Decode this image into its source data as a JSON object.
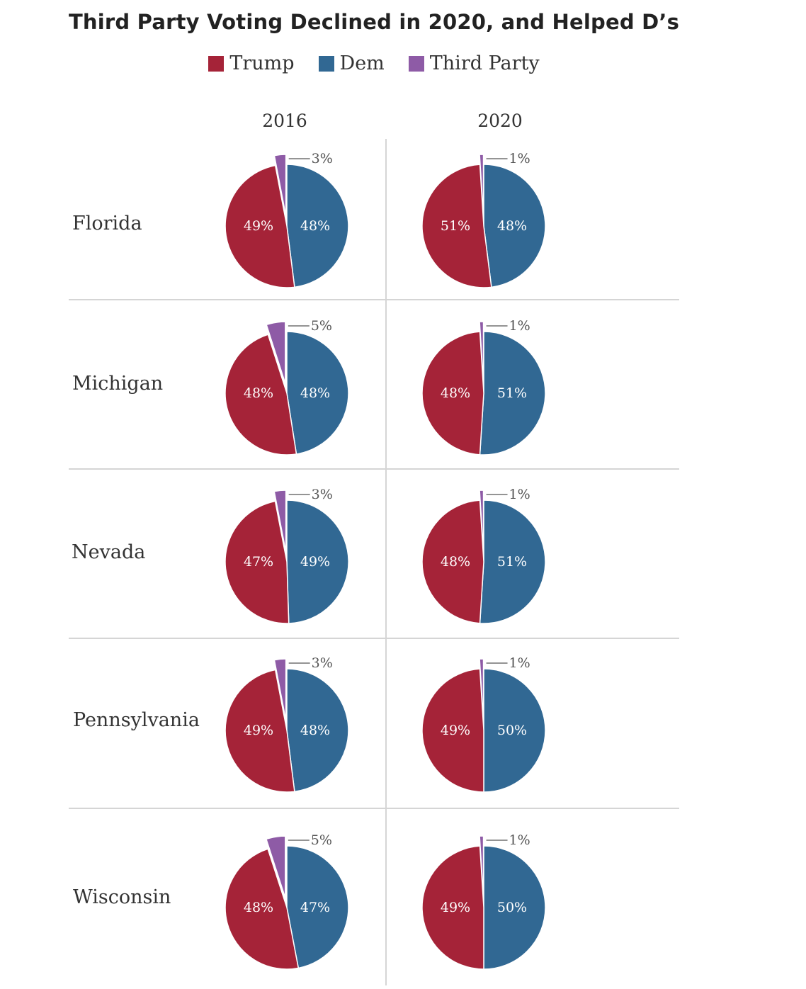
{
  "title": "Third Party Voting Declined in 2020, and Helped D’s",
  "colors": {
    "trump": "#a52338",
    "dem": "#316893",
    "third": "#8e5ba6",
    "grid": "#d5d5d5"
  },
  "chart_data": {
    "type": "pie",
    "legend": [
      "Trump",
      "Dem",
      "Third Party"
    ],
    "legend_position": "top",
    "columns": [
      "2016",
      "2020"
    ],
    "states": [
      {
        "state": "Florida",
        "2016": {
          "Trump": 49,
          "Dem": 48,
          "Third Party": 3
        },
        "2020": {
          "Trump": 51,
          "Dem": 48,
          "Third Party": 1
        }
      },
      {
        "state": "Michigan",
        "2016": {
          "Trump": 48,
          "Dem": 48,
          "Third Party": 5
        },
        "2020": {
          "Trump": 48,
          "Dem": 51,
          "Third Party": 1
        }
      },
      {
        "state": "Nevada",
        "2016": {
          "Trump": 47,
          "Dem": 49,
          "Third Party": 3
        },
        "2020": {
          "Trump": 48,
          "Dem": 51,
          "Third Party": 1
        }
      },
      {
        "state": "Pennsylvania",
        "2016": {
          "Trump": 49,
          "Dem": 48,
          "Third Party": 3
        },
        "2020": {
          "Trump": 49,
          "Dem": 50,
          "Third Party": 1
        }
      },
      {
        "state": "Wisconsin",
        "2016": {
          "Trump": 48,
          "Dem": 47,
          "Third Party": 5
        },
        "2020": {
          "Trump": 49,
          "Dem": 50,
          "Third Party": 1
        }
      }
    ]
  }
}
